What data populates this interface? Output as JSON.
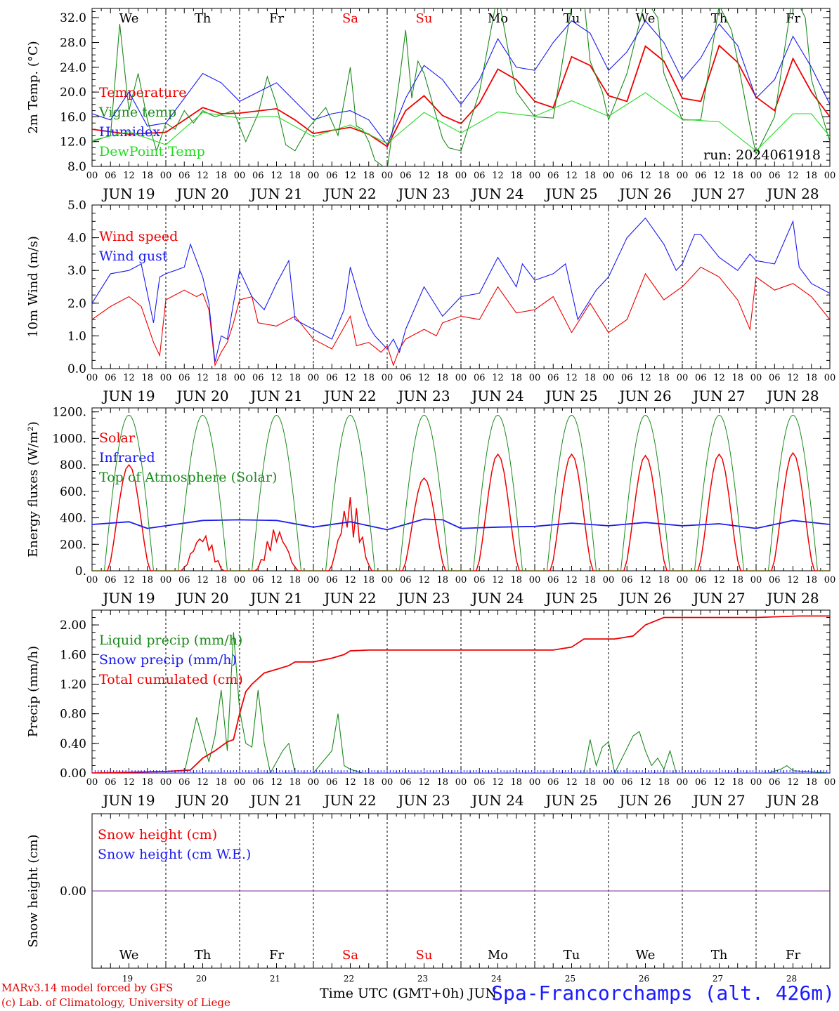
{
  "run_label": "run: 2024061918",
  "credits": [
    "MARv3.14 model forced by GFS",
    "(c) Lab. of Climatology, University of Liege"
  ],
  "x_axis_title": "Time UTC (GMT+0h) JUN",
  "station": "Spa-Francorchamps (alt. 426m)",
  "hour_ticks": [
    "00",
    "06",
    "12",
    "18"
  ],
  "days": [
    {
      "date": "JUN 19",
      "num": "19",
      "dow": "We",
      "weekend": false
    },
    {
      "date": "JUN 20",
      "num": "20",
      "dow": "Th",
      "weekend": false
    },
    {
      "date": "JUN 21",
      "num": "21",
      "dow": "Fr",
      "weekend": false
    },
    {
      "date": "JUN 22",
      "num": "22",
      "dow": "Sa",
      "weekend": true
    },
    {
      "date": "JUN 23",
      "num": "23",
      "dow": "Su",
      "weekend": true
    },
    {
      "date": "JUN 24",
      "num": "24",
      "dow": "Mo",
      "weekend": false
    },
    {
      "date": "JUN 25",
      "num": "25",
      "dow": "Tu",
      "weekend": false
    },
    {
      "date": "JUN 26",
      "num": "26",
      "dow": "We",
      "weekend": false
    },
    {
      "date": "JUN 27",
      "num": "27",
      "dow": "Th",
      "weekend": false
    },
    {
      "date": "JUN 28",
      "num": "28",
      "dow": "Fr",
      "weekend": false
    }
  ],
  "colors": {
    "red": "#ee0000",
    "green": "#1a8a1a",
    "blue": "#1a1aee",
    "lightgreen": "#22dd22",
    "purple": "#7a2a9a",
    "weekend": "#ee0000"
  },
  "chart_data": [
    {
      "id": "temp",
      "type": "line",
      "ylabel": "2m Temp. (°C)",
      "ylim": [
        8,
        34
      ],
      "yticks": [
        "8.0",
        "12.0",
        "16.0",
        "20.0",
        "24.0",
        "28.0",
        "32.0"
      ],
      "x_hours": [
        0,
        240
      ],
      "series": [
        {
          "name": "Temperature",
          "color": "red",
          "x": [
            0,
            12,
            24,
            36,
            42,
            48,
            60,
            66,
            72,
            84,
            90,
            96,
            102,
            108,
            114,
            120,
            126,
            132,
            138,
            144,
            150,
            156,
            162,
            168,
            174,
            180,
            186,
            192,
            198,
            204,
            210,
            216,
            222,
            228,
            234,
            240
          ],
          "values": [
            14,
            13.2,
            13.5,
            17.5,
            16.5,
            16.6,
            17.3,
            15.5,
            13.3,
            14.3,
            13.2,
            11.2,
            17,
            19.4,
            16.2,
            14.9,
            18.2,
            23.7,
            22,
            18.5,
            17.5,
            25.7,
            24.3,
            19.4,
            18.5,
            27.4,
            25,
            19,
            18.5,
            27.5,
            24.8,
            19.2,
            17,
            25.4,
            20,
            16
          ]
        },
        {
          "name": "Vigne temp",
          "color": "green",
          "x": [
            0,
            6,
            9,
            12,
            15,
            18,
            21,
            24,
            27,
            30,
            33,
            36,
            40,
            46,
            50,
            54,
            57,
            60,
            63,
            66,
            70,
            76,
            80,
            84,
            86,
            88,
            90,
            92,
            96,
            100,
            102,
            104,
            106,
            108,
            114,
            116,
            120,
            126,
            132,
            136,
            138,
            144,
            150,
            156,
            160,
            162,
            166,
            168,
            174,
            180,
            184,
            186,
            192,
            198,
            204,
            208,
            210,
            214,
            216,
            222,
            228,
            232,
            234,
            240
          ],
          "values": [
            12,
            13,
            31,
            17,
            23,
            15.5,
            10.5,
            15,
            14,
            17,
            15,
            17,
            16,
            17,
            12,
            16.5,
            22.5,
            18,
            11.5,
            10.5,
            14,
            17.5,
            13,
            24,
            14.5,
            14,
            12,
            9,
            7.5,
            22,
            30,
            19,
            25,
            23,
            12.5,
            11,
            10.5,
            20,
            36,
            25,
            20,
            16,
            15.8,
            34,
            35,
            25,
            20,
            15.5,
            23,
            35,
            32,
            23,
            15.5,
            15.5,
            34,
            30,
            25,
            14.5,
            10,
            16,
            36,
            32,
            22,
            12
          ]
        },
        {
          "name": "Humidex",
          "color": "blue",
          "x": [
            0,
            6,
            12,
            18,
            24,
            30,
            36,
            42,
            48,
            54,
            60,
            66,
            72,
            78,
            84,
            90,
            96,
            102,
            108,
            114,
            120,
            126,
            132,
            138,
            144,
            150,
            156,
            162,
            168,
            174,
            180,
            186,
            192,
            198,
            204,
            210,
            216,
            222,
            228,
            234,
            240
          ],
          "values": [
            16.5,
            15.5,
            20,
            14.5,
            15,
            19,
            23,
            21.5,
            18.5,
            20,
            21.5,
            18.5,
            15.5,
            16.5,
            17,
            15.5,
            11.5,
            19,
            24.3,
            22,
            18,
            22,
            28.6,
            24,
            23.5,
            28,
            31.5,
            29.5,
            23.5,
            26.5,
            31.5,
            28,
            22,
            25.5,
            31,
            27.5,
            19,
            22,
            29,
            24,
            18
          ]
        },
        {
          "name": "DewPoint Temp",
          "color": "lightgreen",
          "x": [
            0,
            12,
            24,
            36,
            48,
            60,
            72,
            84,
            96,
            108,
            120,
            132,
            144,
            156,
            168,
            180,
            192,
            204,
            216,
            228,
            234,
            240
          ],
          "values": [
            12.2,
            13.6,
            11.5,
            16.7,
            15.8,
            16.1,
            12.8,
            14.7,
            11.7,
            16.7,
            13.4,
            16.8,
            16.1,
            18.6,
            16.1,
            19.9,
            15.6,
            15.2,
            10.5,
            16.5,
            16.5,
            12.8
          ]
        }
      ]
    },
    {
      "id": "wind",
      "type": "line",
      "ylabel": "10m Wind (m/s)",
      "ylim": [
        0,
        5
      ],
      "yticks": [
        "0.0",
        "1.0",
        "2.0",
        "3.0",
        "4.0",
        "5.0"
      ],
      "x_hours": [
        0,
        240
      ],
      "series": [
        {
          "name": "Wind speed",
          "color": "red",
          "x": [
            0,
            6,
            12,
            16,
            20,
            22,
            24,
            30,
            34,
            36,
            38,
            40,
            42,
            44,
            46,
            48,
            52,
            54,
            60,
            66,
            72,
            78,
            84,
            86,
            90,
            94,
            96,
            98,
            100,
            102,
            104,
            108,
            112,
            114,
            120,
            126,
            132,
            138,
            144,
            150,
            156,
            162,
            168,
            174,
            180,
            186,
            192,
            198,
            204,
            210,
            214,
            216,
            222,
            228,
            234,
            240
          ],
          "values": [
            1.5,
            1.9,
            2.2,
            1.9,
            0.8,
            0.4,
            2.1,
            2.4,
            2.2,
            2.3,
            1.8,
            0.1,
            0.5,
            0.8,
            1.4,
            2.1,
            2.2,
            1.4,
            1.3,
            1.6,
            0.9,
            0.6,
            1.6,
            0.7,
            0.8,
            0.5,
            0.7,
            0.1,
            0.6,
            0.9,
            1.0,
            1.2,
            1.0,
            1.4,
            1.6,
            1.5,
            2.5,
            1.7,
            1.8,
            2.2,
            1.1,
            2.0,
            1.1,
            1.5,
            2.9,
            2.1,
            2.5,
            3.1,
            2.8,
            2.1,
            1.2,
            2.8,
            2.4,
            2.6,
            2.2,
            1.5
          ]
        },
        {
          "name": "Wind gust",
          "color": "blue",
          "x": [
            0,
            6,
            12,
            16,
            20,
            22,
            24,
            30,
            32,
            36,
            38,
            40,
            42,
            44,
            46,
            48,
            52,
            56,
            60,
            64,
            66,
            72,
            78,
            82,
            84,
            88,
            90,
            92,
            96,
            98,
            100,
            102,
            108,
            114,
            120,
            126,
            132,
            138,
            140,
            144,
            150,
            154,
            158,
            164,
            168,
            174,
            180,
            186,
            190,
            192,
            196,
            198,
            204,
            210,
            214,
            216,
            222,
            228,
            230,
            234,
            240
          ],
          "values": [
            2,
            2.9,
            3.0,
            3.2,
            1.4,
            2.8,
            2.9,
            3.1,
            3.8,
            2.8,
            2.0,
            0.2,
            1.0,
            0.9,
            2.0,
            3.0,
            2.2,
            1.8,
            2.6,
            3.3,
            1.5,
            1.2,
            0.9,
            1.8,
            3.1,
            1.8,
            1.3,
            1.0,
            0.6,
            0.9,
            0.5,
            1.2,
            2.5,
            1.6,
            2.2,
            2.3,
            3.4,
            2.5,
            3.2,
            2.7,
            2.9,
            3.2,
            1.5,
            2.4,
            2.8,
            4.0,
            4.6,
            3.8,
            3.0,
            3.2,
            4.1,
            4.1,
            3.4,
            3.0,
            3.5,
            3.3,
            3.2,
            4.5,
            3.1,
            2.6,
            2.3
          ]
        }
      ]
    },
    {
      "id": "energy",
      "type": "line",
      "ylabel": "Energy fluxes (W/m²)",
      "ylim": [
        0,
        1250
      ],
      "yticks": [
        "0.",
        "200.",
        "400.",
        "600.",
        "800.",
        "1000.",
        "1200."
      ],
      "x_hours": [
        0,
        240
      ],
      "series": [
        {
          "name": "Solar",
          "color": "red",
          "peaks": [
            {
              "h": 13,
              "v": 800
            },
            {
              "h": 37,
              "v": 290
            },
            {
              "h": 61,
              "v": 330
            },
            {
              "h": 85,
              "v": 560
            },
            {
              "h": 109,
              "v": 700
            },
            {
              "h": 133,
              "v": 880
            },
            {
              "h": 157,
              "v": 880
            },
            {
              "h": 181,
              "v": 870
            },
            {
              "h": 205,
              "v": 880
            },
            {
              "h": 229,
              "v": 890
            }
          ]
        },
        {
          "name": "Infrared",
          "color": "blue",
          "x": [
            0,
            12,
            18,
            24,
            36,
            48,
            60,
            72,
            84,
            96,
            108,
            114,
            120,
            132,
            144,
            156,
            168,
            180,
            192,
            204,
            216,
            228,
            240
          ],
          "values": [
            350,
            370,
            320,
            340,
            380,
            385,
            380,
            330,
            370,
            310,
            390,
            385,
            320,
            330,
            335,
            360,
            340,
            365,
            340,
            355,
            320,
            380,
            350
          ]
        },
        {
          "name": "Top of Atmosphere (Solar)",
          "color": "green",
          "peak": 1175
        }
      ]
    },
    {
      "id": "precip",
      "type": "line",
      "ylabel": "Precip (mm/h)",
      "ylim": [
        0,
        2.2
      ],
      "yticks": [
        "0.00",
        "0.40",
        "0.80",
        "1.20",
        "1.60",
        "2.00"
      ],
      "x_hours": [
        0,
        240
      ],
      "series": [
        {
          "name": "Liquid precip (mm/h)",
          "color": "green",
          "x": [
            0,
            24,
            30,
            34,
            38,
            40,
            42,
            44,
            46,
            48,
            50,
            52,
            54,
            56,
            58,
            62,
            64,
            66,
            68,
            72,
            78,
            80,
            82,
            84,
            88,
            120,
            160,
            162,
            164,
            166,
            168,
            170,
            176,
            178,
            180,
            182,
            184,
            186,
            188,
            190,
            192,
            220,
            224,
            226,
            228,
            240
          ],
          "values": [
            0,
            0,
            0,
            0.75,
            0.15,
            0.5,
            1.12,
            0.3,
            1.9,
            0.85,
            0.4,
            0.35,
            1.12,
            0.4,
            0,
            0.3,
            0.4,
            0,
            0,
            0,
            0.3,
            0.8,
            0.1,
            0.05,
            0,
            0,
            0,
            0.45,
            0.1,
            0.35,
            0.42,
            0,
            0.5,
            0.56,
            0.3,
            0.1,
            0.2,
            0.05,
            0.3,
            0,
            0,
            0,
            0.05,
            0.1,
            0.03,
            0
          ]
        },
        {
          "name": "Snow precip (mm/h)",
          "color": "blue",
          "x": [
            0,
            240
          ],
          "values": [
            0,
            0
          ]
        },
        {
          "name": "Total cumulated (cm)",
          "color": "red",
          "x": [
            0,
            24,
            32,
            36,
            40,
            44,
            46,
            48,
            50,
            52,
            56,
            60,
            64,
            66,
            72,
            78,
            82,
            84,
            90,
            120,
            150,
            156,
            160,
            170,
            176,
            180,
            186,
            192,
            200,
            216,
            230,
            234,
            240
          ],
          "values": [
            0,
            0.02,
            0.04,
            0.2,
            0.3,
            0.42,
            0.45,
            0.8,
            1.1,
            1.2,
            1.35,
            1.4,
            1.45,
            1.5,
            1.5,
            1.55,
            1.6,
            1.65,
            1.66,
            1.66,
            1.66,
            1.7,
            1.81,
            1.81,
            1.85,
            2.0,
            2.1,
            2.1,
            2.1,
            2.1,
            2.12,
            2.12,
            2.12
          ]
        }
      ]
    },
    {
      "id": "snow",
      "type": "line",
      "ylabel": "Snow height (cm)",
      "ylim": [
        -1,
        1
      ],
      "yticks": [
        "0.00"
      ],
      "x_hours": [
        0,
        240
      ],
      "series": [
        {
          "name": "Snow height (cm)",
          "color": "red",
          "x": [
            0,
            240
          ],
          "values": [
            0,
            0
          ]
        },
        {
          "name": "Snow height (cm W.E.)",
          "color": "blue",
          "x": [
            0,
            240
          ],
          "values": [
            0,
            0
          ]
        }
      ]
    }
  ]
}
